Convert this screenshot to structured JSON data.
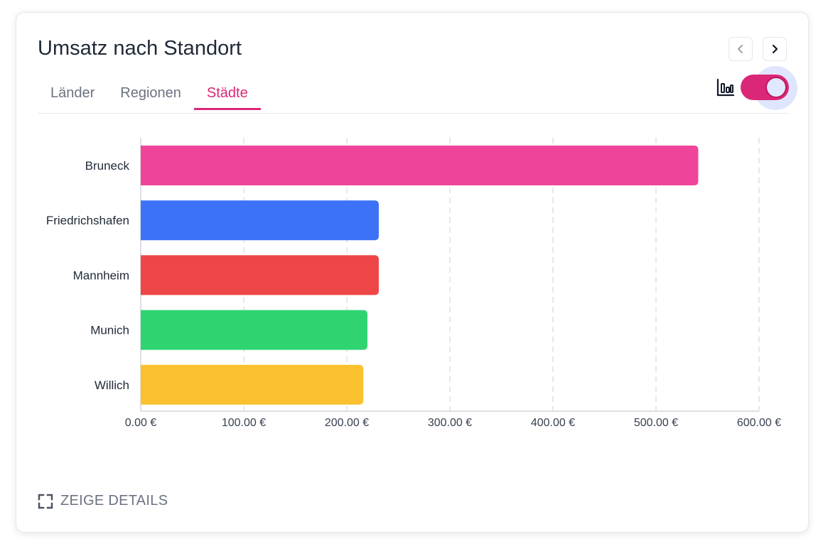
{
  "card": {
    "title": "Umsatz nach Standort",
    "tabs": [
      {
        "label": "Länder"
      },
      {
        "label": "Regionen"
      },
      {
        "label": "Städte"
      }
    ],
    "active_tab": "Städte",
    "prev_icon": "chevron-left-icon",
    "next_icon": "chevron-right-icon",
    "chart_view_icon": "bar-chart-icon",
    "toggle_on": true,
    "details_icon": "expand-icon",
    "details_label": "ZEIGE DETAILS"
  },
  "chart_data": {
    "type": "bar",
    "orientation": "horizontal",
    "categories": [
      "Bruneck",
      "Friedrichshafen",
      "Mannheim",
      "Munich",
      "Willich"
    ],
    "values": [
      541,
      231,
      231,
      220,
      216
    ],
    "colors": [
      "#ef4499",
      "#3b72f6",
      "#ee4646",
      "#2fd471",
      "#fbc12e"
    ],
    "x_ticks": [
      "0.00 €",
      "100.00 €",
      "200.00 €",
      "300.00 €",
      "400.00 €",
      "500.00 €",
      "600.00 €"
    ],
    "xlim": [
      0,
      600
    ],
    "grid": true
  }
}
